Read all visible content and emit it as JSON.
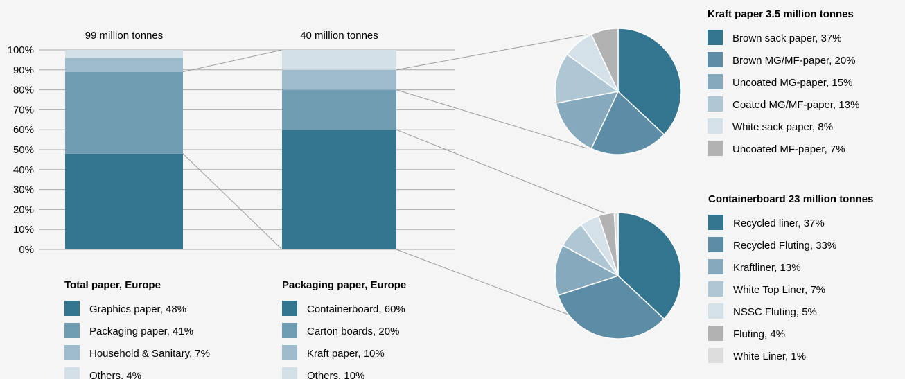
{
  "chart_data": [
    {
      "type": "bar",
      "stacked": true,
      "y_axis": {
        "ticks": [
          "0%",
          "10%",
          "20%",
          "30%",
          "40%",
          "50%",
          "60%",
          "70%",
          "80%",
          "90%",
          "100%"
        ],
        "ylim": [
          0,
          100
        ]
      },
      "grid": true,
      "bars": [
        {
          "label": "99 million tonnes",
          "legend_title": "Total paper, Europe",
          "segments": [
            {
              "name": "Graphics paper, 48%",
              "value": 48,
              "color": "#33748f"
            },
            {
              "name": "Packaging paper, 41%",
              "value": 41,
              "color": "#709cb1"
            },
            {
              "name": "Household & Sanitary, 7%",
              "value": 7,
              "color": "#9ebbcb"
            },
            {
              "name": "Others, 4%",
              "value": 4,
              "color": "#d4e0e8"
            }
          ]
        },
        {
          "label": "40 million tonnes",
          "legend_title": "Packaging paper, Europe",
          "segments": [
            {
              "name": "Containerboard, 60%",
              "value": 60,
              "color": "#33748f"
            },
            {
              "name": "Carton boards, 20%",
              "value": 20,
              "color": "#709cb1"
            },
            {
              "name": "Kraft paper, 10%",
              "value": 10,
              "color": "#9ebbcb"
            },
            {
              "name": "Others, 10%",
              "value": 10,
              "color": "#d4e0e8"
            }
          ]
        }
      ]
    },
    {
      "type": "pie",
      "title": "Kraft paper 3.5 million tonnes",
      "slices": [
        {
          "name": "Brown sack paper, 37%",
          "value": 37,
          "color": "#33748f"
        },
        {
          "name": "Brown MG/MF-paper, 20%",
          "value": 20,
          "color": "#5c8ca6"
        },
        {
          "name": "Uncoated MG-paper, 15%",
          "value": 15,
          "color": "#86a9bd"
        },
        {
          "name": "Coated MG/MF-paper, 13%",
          "value": 13,
          "color": "#afc6d4"
        },
        {
          "name": "White sack paper, 8%",
          "value": 8,
          "color": "#d5e1e9"
        },
        {
          "name": "Uncoated MF-paper, 7%",
          "value": 7,
          "color": "#b2b2b2"
        }
      ]
    },
    {
      "type": "pie",
      "title": "Containerboard 23 million tonnes",
      "slices": [
        {
          "name": "Recycled liner, 37%",
          "value": 37,
          "color": "#33748f"
        },
        {
          "name": "Recycled Fluting, 33%",
          "value": 33,
          "color": "#5c8ca6"
        },
        {
          "name": "Kraftliner, 13%",
          "value": 13,
          "color": "#86a9bd"
        },
        {
          "name": "White Top Liner, 7%",
          "value": 7,
          "color": "#afc6d4"
        },
        {
          "name": "NSSC Fluting, 5%",
          "value": 5,
          "color": "#d5e1e9"
        },
        {
          "name": "Fluting, 4%",
          "value": 4,
          "color": "#b2b2b2"
        },
        {
          "name": "White Liner, 1%",
          "value": 1,
          "color": "#dcdcdc"
        }
      ]
    }
  ],
  "colors": {
    "connector": "#9a9a9a",
    "grid": "#a8a8a8",
    "background": "#f5f5f5",
    "slice_border": "#ffffff"
  }
}
